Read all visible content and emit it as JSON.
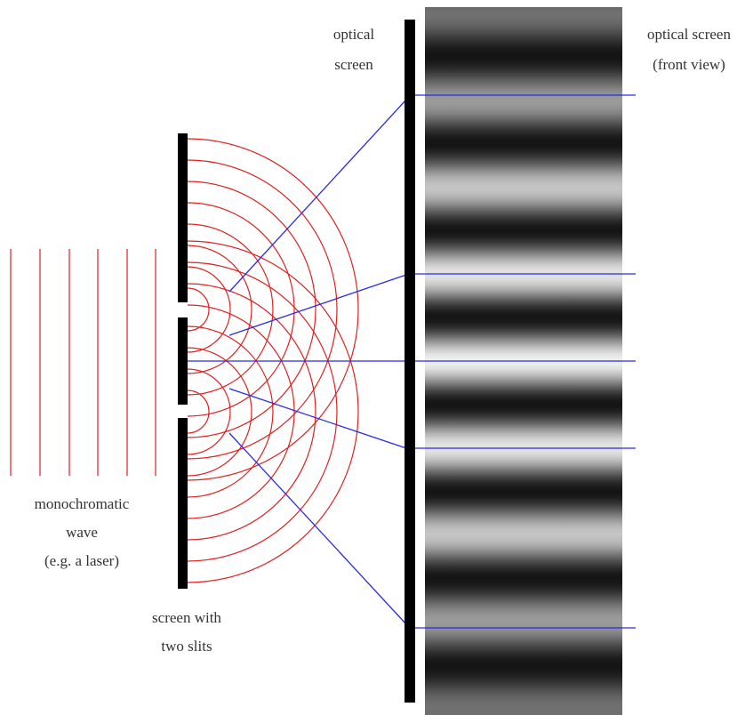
{
  "labels": {
    "optical_screen": [
      "optical",
      "screen"
    ],
    "front_view": [
      "optical screen",
      "(front view)"
    ],
    "wave": [
      "monochromatic",
      "wave",
      "(e.g. a laser)"
    ],
    "slits": [
      "screen with",
      "two slits"
    ]
  }
}
